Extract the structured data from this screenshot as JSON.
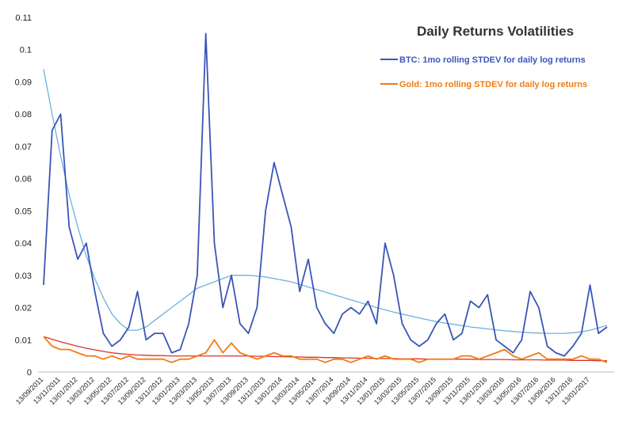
{
  "chart_data": {
    "type": "line",
    "title": "Daily Returns Volatilities",
    "categories": [
      "13/09/2011",
      null,
      "13/11/2011",
      null,
      "13/01/2012",
      null,
      "13/03/2012",
      null,
      "13/05/2012",
      null,
      "13/07/2012",
      null,
      "13/09/2012",
      null,
      "13/11/2012",
      null,
      "13/01/2013",
      null,
      "13/03/2013",
      null,
      "13/05/2013",
      null,
      "13/07/2013",
      null,
      "13/09/2013",
      null,
      "13/11/2013",
      null,
      "13/01/2014",
      null,
      "13/03/2014",
      null,
      "13/05/2014",
      null,
      "13/07/2014",
      null,
      "13/09/2014",
      null,
      "13/11/2014",
      null,
      "13/01/2015",
      null,
      "13/03/2015",
      null,
      "13/05/2015",
      null,
      "13/07/2015",
      null,
      "13/09/2015",
      null,
      "13/11/2015",
      null,
      "13/01/2016",
      null,
      "13/03/2016",
      null,
      "13/05/2016",
      null,
      "13/07/2016",
      null,
      "13/09/2016",
      null,
      "13/11/2016",
      null,
      "13/01/2017",
      null,
      null
    ],
    "series": [
      {
        "name": "BTC: 1mo rolling STDEV for daily log returns",
        "color": "#3a55b8",
        "values": [
          0.027,
          0.075,
          0.08,
          0.045,
          0.035,
          0.04,
          0.025,
          0.012,
          0.008,
          0.01,
          0.014,
          0.025,
          0.01,
          0.012,
          0.012,
          0.006,
          0.007,
          0.015,
          0.03,
          0.105,
          0.04,
          0.02,
          0.03,
          0.015,
          0.012,
          0.02,
          0.05,
          0.065,
          0.055,
          0.045,
          0.025,
          0.035,
          0.02,
          0.015,
          0.012,
          0.018,
          0.02,
          0.018,
          0.022,
          0.015,
          0.04,
          0.03,
          0.015,
          0.01,
          0.008,
          0.01,
          0.015,
          0.018,
          0.01,
          0.012,
          0.022,
          0.02,
          0.024,
          0.01,
          0.008,
          0.006,
          0.01,
          0.025,
          0.02,
          0.008,
          0.006,
          0.005,
          0.008,
          0.012,
          0.027,
          0.012,
          0.014
        ]
      },
      {
        "name": "Gold: 1mo rolling STDEV for daily log returns",
        "color": "#f07c12",
        "values": [
          0.011,
          0.008,
          0.007,
          0.007,
          0.006,
          0.005,
          0.005,
          0.004,
          0.005,
          0.004,
          0.005,
          0.004,
          0.004,
          0.004,
          0.004,
          0.003,
          0.004,
          0.004,
          0.005,
          0.006,
          0.01,
          0.006,
          0.009,
          0.006,
          0.005,
          0.004,
          0.005,
          0.006,
          0.005,
          0.005,
          0.004,
          0.004,
          0.004,
          0.003,
          0.004,
          0.004,
          0.003,
          0.004,
          0.005,
          0.004,
          0.005,
          0.004,
          0.004,
          0.004,
          0.003,
          0.004,
          0.004,
          0.004,
          0.004,
          0.005,
          0.005,
          0.004,
          0.005,
          0.006,
          0.007,
          0.005,
          0.004,
          0.005,
          0.006,
          0.004,
          0.004,
          0.004,
          0.004,
          0.005,
          0.004,
          0.004,
          0.003
        ]
      }
    ],
    "trendlines": [
      {
        "color": "#6fb0e0",
        "values": [
          0.094,
          0.08,
          0.067,
          0.055,
          0.045,
          0.036,
          0.029,
          0.023,
          0.018,
          0.015,
          0.013,
          0.013,
          0.014,
          0.016,
          0.018,
          0.02,
          0.022,
          0.024,
          0.026,
          0.027,
          0.028,
          0.029,
          0.03,
          0.03,
          0.03,
          0.0298,
          0.0295,
          0.029,
          0.0285,
          0.028,
          0.0272,
          0.0264,
          0.0256,
          0.0248,
          0.024,
          0.0232,
          0.0224,
          0.0216,
          0.0208,
          0.02,
          0.0193,
          0.0186,
          0.018,
          0.0174,
          0.0168,
          0.0162,
          0.0157,
          0.0152,
          0.0148,
          0.0144,
          0.014,
          0.0137,
          0.0134,
          0.0131,
          0.0128,
          0.0126,
          0.0124,
          0.0122,
          0.0121,
          0.012,
          0.012,
          0.012,
          0.0122,
          0.0125,
          0.013,
          0.0137,
          0.0145
        ]
      },
      {
        "color": "#e0302a",
        "values": [
          0.011,
          0.0102,
          0.0094,
          0.0087,
          0.008,
          0.0074,
          0.0069,
          0.0064,
          0.006,
          0.0057,
          0.0055,
          0.0053,
          0.0052,
          0.0051,
          0.0051,
          0.005,
          0.005,
          0.005,
          0.005,
          0.005,
          0.005,
          0.005,
          0.005,
          0.005,
          0.005,
          0.0049,
          0.0049,
          0.0048,
          0.0048,
          0.0047,
          0.0047,
          0.0046,
          0.0046,
          0.0045,
          0.0045,
          0.0044,
          0.0044,
          0.0043,
          0.0043,
          0.0042,
          0.0042,
          0.0042,
          0.0041,
          0.0041,
          0.0041,
          0.004,
          0.004,
          0.004,
          0.004,
          0.004,
          0.004,
          0.0039,
          0.0039,
          0.0039,
          0.0039,
          0.0038,
          0.0038,
          0.0038,
          0.0038,
          0.0037,
          0.0037,
          0.0037,
          0.0036,
          0.0036,
          0.0036,
          0.0035,
          0.0035
        ]
      }
    ],
    "ylim": [
      0,
      0.11
    ],
    "yticks": [
      0,
      0.01,
      0.02,
      0.03,
      0.04,
      0.05,
      0.06,
      0.07,
      0.08,
      0.09,
      0.1,
      0.11
    ],
    "grid": false,
    "legend": "top-right"
  }
}
